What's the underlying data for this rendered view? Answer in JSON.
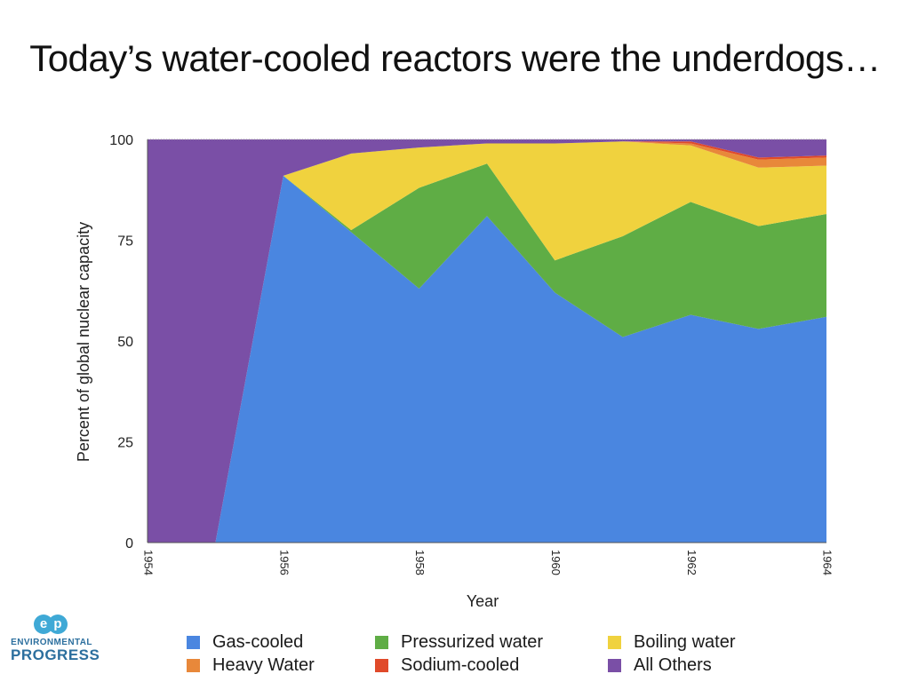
{
  "slide": {
    "title": "Today’s water-cooled reactors were the underdogs…"
  },
  "logo": {
    "mark": "ep",
    "line1": "ENVIRONMENTAL",
    "line2": "PROGRESS"
  },
  "chart_data": {
    "type": "area",
    "stacked": true,
    "xlabel": "Year",
    "ylabel": "Percent of global nuclear capacity",
    "ylim": [
      0,
      100
    ],
    "yticks": [
      0,
      25,
      50,
      75,
      100
    ],
    "x": [
      1954,
      1955,
      1956,
      1957,
      1958,
      1959,
      1960,
      1961,
      1962,
      1963,
      1964
    ],
    "xtick_labels": [
      "1954",
      "1956",
      "1958",
      "1960",
      "1962",
      "1964"
    ],
    "grid": false,
    "legend_position": "bottom",
    "series": [
      {
        "name": "Gas-cooled",
        "color": "#4a86e0",
        "values": [
          0,
          0,
          91,
          77,
          63,
          81,
          62,
          51,
          56.5,
          53,
          56
        ]
      },
      {
        "name": "Pressurized water",
        "color": "#5fad45",
        "values": [
          0,
          0,
          0,
          0.5,
          25,
          13,
          8,
          25,
          28,
          25.5,
          25.5
        ]
      },
      {
        "name": "Boiling water",
        "color": "#f0d23e",
        "values": [
          0,
          0,
          0,
          19,
          10,
          5,
          29,
          23.5,
          14,
          14.5,
          12
        ]
      },
      {
        "name": "Heavy Water",
        "color": "#e8883a",
        "values": [
          0,
          0,
          0,
          0,
          0,
          0,
          0,
          0,
          0.5,
          2,
          2
        ]
      },
      {
        "name": "Sodium-cooled",
        "color": "#e04a2a",
        "values": [
          0,
          0,
          0,
          0,
          0,
          0,
          0,
          0,
          0.5,
          0.5,
          0.5
        ]
      },
      {
        "name": "All Others",
        "color": "#7a4fa6",
        "values": [
          100,
          100,
          9,
          3.5,
          2,
          1,
          1,
          0.5,
          0.5,
          4.5,
          4
        ]
      }
    ],
    "legend_order": [
      "Gas-cooled",
      "Pressurized water",
      "Boiling water",
      "Heavy Water",
      "Sodium-cooled",
      "All Others"
    ]
  }
}
